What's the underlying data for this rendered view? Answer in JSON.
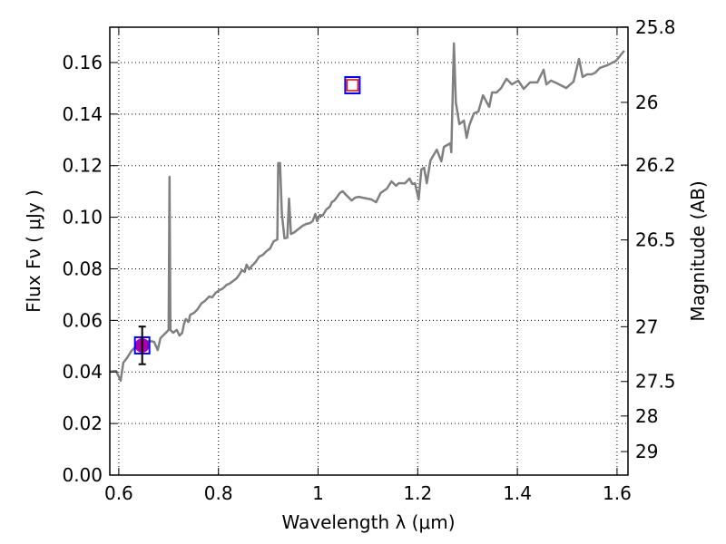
{
  "chart_data": {
    "type": "line",
    "xlabel": "Wavelength  λ (μm)",
    "ylabel": "Flux  Fν  ( μJy )",
    "ylabel_right": "Magnitude (AB)",
    "xlim": [
      0.582,
      1.622
    ],
    "ylim": [
      0.0,
      0.1737
    ],
    "grid": true,
    "x_ticks": [
      0.6,
      0.8,
      1.0,
      1.2,
      1.4,
      1.6
    ],
    "x_tick_labels": [
      "0.6",
      "0.8",
      "1",
      "1.2",
      "1.4",
      "1.6"
    ],
    "y_ticks": [
      0.0,
      0.02,
      0.04,
      0.06,
      0.08,
      0.1,
      0.12,
      0.14,
      0.16
    ],
    "y_tick_labels": [
      "0.00",
      "0.02",
      "0.04",
      "0.06",
      "0.08",
      "0.10",
      "0.12",
      "0.14",
      "0.16"
    ],
    "right_ticks_mag": [
      25.8,
      26,
      26.2,
      26.5,
      27,
      27.5,
      28,
      29
    ],
    "right_tick_labels": [
      "25.8",
      "26",
      "26.2",
      "26.5",
      "27",
      "27.5",
      "28",
      "29"
    ],
    "series": [
      {
        "name": "spectrum",
        "color": "#808080",
        "x": [
          0.582,
          0.5945,
          0.6036,
          0.6091,
          0.6164,
          0.6255,
          0.6345,
          0.6473,
          0.6618,
          0.6709,
          0.6782,
          0.6836,
          0.6945,
          0.7,
          0.7018,
          0.7036,
          0.7091,
          0.7164,
          0.7218,
          0.7273,
          0.7309,
          0.7345,
          0.74,
          0.7436,
          0.7509,
          0.7582,
          0.7655,
          0.7727,
          0.7818,
          0.7873,
          0.7945,
          0.8018,
          0.8091,
          0.8164,
          0.8218,
          0.8291,
          0.8364,
          0.8418,
          0.8473,
          0.8527,
          0.8564,
          0.8618,
          0.8673,
          0.8745,
          0.8818,
          0.8891,
          0.8964,
          0.9036,
          0.9109,
          0.9182,
          0.92,
          0.9236,
          0.9273,
          0.9327,
          0.9382,
          0.9418,
          0.9455,
          0.9527,
          0.9618,
          0.9691,
          0.9764,
          0.9836,
          0.9891,
          0.9945,
          0.9982,
          1.0036,
          1.0091,
          1.0164,
          1.0236,
          1.0273,
          1.0327,
          1.0382,
          1.0436,
          1.0491,
          1.0545,
          1.0618,
          1.0673,
          1.0745,
          1.0818,
          1.0891,
          1.1073,
          1.1164,
          1.1255,
          1.1382,
          1.1473,
          1.1564,
          1.1618,
          1.1745,
          1.1836,
          1.1891,
          1.1945,
          1.2018,
          1.2073,
          1.2127,
          1.2182,
          1.2255,
          1.2382,
          1.2473,
          1.2527,
          1.2655,
          1.2673,
          1.2727,
          1.2764,
          1.2836,
          1.2927,
          1.2982,
          1.3036,
          1.3127,
          1.3218,
          1.3309,
          1.3436,
          1.3491,
          1.3582,
          1.3673,
          1.3782,
          1.3891,
          1.4018,
          1.4127,
          1.4255,
          1.44,
          1.4527,
          1.4582,
          1.4673,
          1.48,
          1.4982,
          1.5127,
          1.5236,
          1.5309,
          1.54,
          1.5491,
          1.5564,
          1.5655,
          1.58,
          1.5982,
          1.6145
        ],
        "y": [
          0.0401,
          0.0404,
          0.0366,
          0.0436,
          0.0454,
          0.0482,
          0.0499,
          0.0513,
          0.052,
          0.0517,
          0.0485,
          0.0531,
          0.0552,
          0.0563,
          0.1157,
          0.0563,
          0.0552,
          0.0563,
          0.0541,
          0.0552,
          0.0587,
          0.0605,
          0.0594,
          0.0622,
          0.0629,
          0.0643,
          0.0665,
          0.0675,
          0.0693,
          0.0689,
          0.0707,
          0.0717,
          0.0724,
          0.0738,
          0.0742,
          0.0752,
          0.0763,
          0.0777,
          0.0795,
          0.0788,
          0.0816,
          0.0798,
          0.0812,
          0.0826,
          0.0847,
          0.0854,
          0.0868,
          0.0879,
          0.0907,
          0.0914,
          0.121,
          0.121,
          0.1013,
          0.0918,
          0.0921,
          0.1072,
          0.0935,
          0.0942,
          0.0956,
          0.0967,
          0.0974,
          0.0977,
          0.0985,
          0.1013,
          0.0985,
          0.1009,
          0.1006,
          0.103,
          0.1041,
          0.1058,
          0.1065,
          0.1079,
          0.1094,
          0.1101,
          0.109,
          0.1076,
          0.1065,
          0.1076,
          0.1079,
          0.1076,
          0.1069,
          0.1058,
          0.1094,
          0.1111,
          0.1139,
          0.1122,
          0.1132,
          0.1132,
          0.115,
          0.1129,
          0.1132,
          0.1069,
          0.1185,
          0.1192,
          0.1132,
          0.122,
          0.1262,
          0.1217,
          0.1273,
          0.1287,
          0.1252,
          0.1674,
          0.1445,
          0.1361,
          0.1375,
          0.1308,
          0.1357,
          0.1403,
          0.141,
          0.1473,
          0.1428,
          0.1484,
          0.1484,
          0.1501,
          0.1537,
          0.1515,
          0.153,
          0.1498,
          0.1523,
          0.1523,
          0.1572,
          0.1515,
          0.153,
          0.1519,
          0.1501,
          0.1526,
          0.1614,
          0.1544,
          0.1554,
          0.1554,
          0.1561,
          0.1579,
          0.1589,
          0.1607,
          0.1646
        ]
      }
    ],
    "markers": [
      {
        "name": "photometry-point-1",
        "x": 0.647,
        "y": 0.0503,
        "yerr": 0.0073,
        "fill": "#aa00aa",
        "square": "#0000ff"
      },
      {
        "name": "photometry-point-2",
        "x": 1.069,
        "y": 0.1512,
        "inner_square": "#ff0000",
        "square": "#0000ff"
      }
    ]
  }
}
